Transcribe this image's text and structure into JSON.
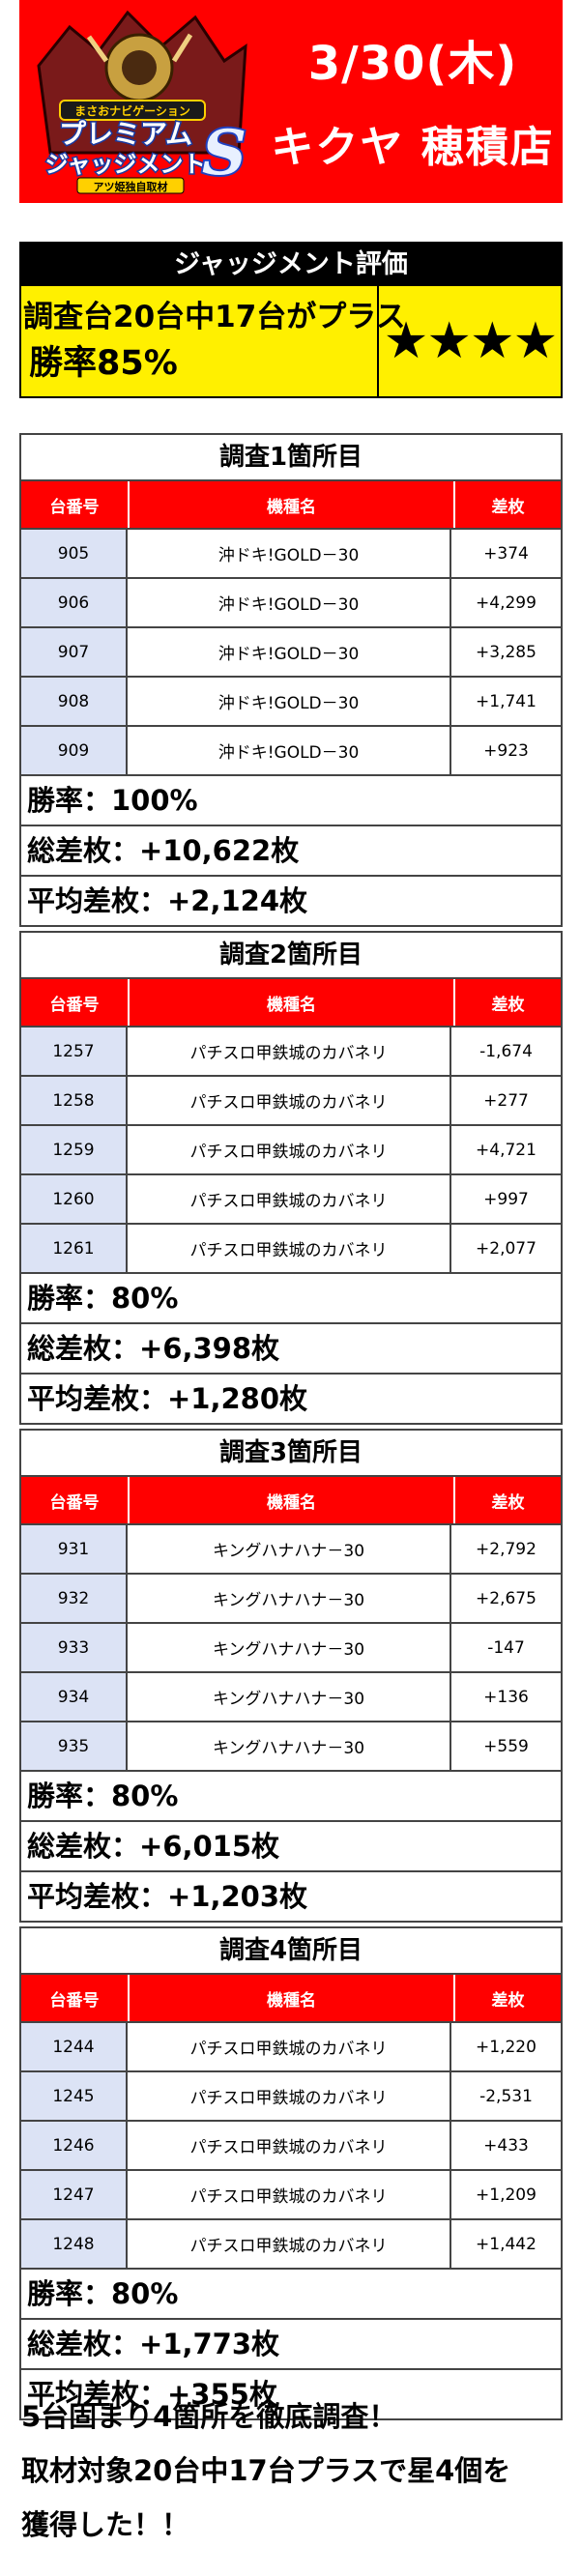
{
  "header": {
    "date": "3/30(木)",
    "store": "キクヤ 穂積店",
    "logo_top_text": "まさおナビゲーション",
    "logo_main_line1": "プレミアム",
    "logo_main_line2": "ジャッジメント",
    "logo_letter": "S",
    "logo_sub_text": "アツ姫独自取材",
    "bg_color": "#ff0000"
  },
  "judgement": {
    "title": "ジャッジメント評価",
    "line1": "調査台20台中17台がプラス",
    "line2": "勝率85%",
    "stars": "★★★★",
    "star_count": 4,
    "bg_color": "#fff000"
  },
  "table_headers": {
    "no": "台番号",
    "model": "機種名",
    "diff": "差枚"
  },
  "surveys": [
    {
      "title": "調査1箇所目",
      "rows": [
        {
          "no": "905",
          "model": "沖ドキ!GOLD－30",
          "diff": "+374"
        },
        {
          "no": "906",
          "model": "沖ドキ!GOLD－30",
          "diff": "+4,299"
        },
        {
          "no": "907",
          "model": "沖ドキ!GOLD－30",
          "diff": "+3,285"
        },
        {
          "no": "908",
          "model": "沖ドキ!GOLD－30",
          "diff": "+1,741"
        },
        {
          "no": "909",
          "model": "沖ドキ!GOLD－30",
          "diff": "+923"
        }
      ],
      "win_rate": "勝率：100%",
      "total": "総差枚：+10,622枚",
      "avg": "平均差枚：+2,124枚"
    },
    {
      "title": "調査2箇所目",
      "rows": [
        {
          "no": "1257",
          "model": "パチスロ甲鉄城のカバネリ",
          "diff": "-1,674"
        },
        {
          "no": "1258",
          "model": "パチスロ甲鉄城のカバネリ",
          "diff": "+277"
        },
        {
          "no": "1259",
          "model": "パチスロ甲鉄城のカバネリ",
          "diff": "+4,721"
        },
        {
          "no": "1260",
          "model": "パチスロ甲鉄城のカバネリ",
          "diff": "+997"
        },
        {
          "no": "1261",
          "model": "パチスロ甲鉄城のカバネリ",
          "diff": "+2,077"
        }
      ],
      "win_rate": "勝率：80%",
      "total": "総差枚：+6,398枚",
      "avg": "平均差枚：+1,280枚"
    },
    {
      "title": "調査3箇所目",
      "rows": [
        {
          "no": "931",
          "model": "キングハナハナ－30",
          "diff": "+2,792"
        },
        {
          "no": "932",
          "model": "キングハナハナ－30",
          "diff": "+2,675"
        },
        {
          "no": "933",
          "model": "キングハナハナ－30",
          "diff": "-147"
        },
        {
          "no": "934",
          "model": "キングハナハナ－30",
          "diff": "+136"
        },
        {
          "no": "935",
          "model": "キングハナハナ－30",
          "diff": "+559"
        }
      ],
      "win_rate": "勝率：80%",
      "total": "総差枚：+6,015枚",
      "avg": "平均差枚：+1,203枚"
    },
    {
      "title": "調査4箇所目",
      "rows": [
        {
          "no": "1244",
          "model": "パチスロ甲鉄城のカバネリ",
          "diff": "+1,220"
        },
        {
          "no": "1245",
          "model": "パチスロ甲鉄城のカバネリ",
          "diff": "-2,531"
        },
        {
          "no": "1246",
          "model": "パチスロ甲鉄城のカバネリ",
          "diff": "+433"
        },
        {
          "no": "1247",
          "model": "パチスロ甲鉄城のカバネリ",
          "diff": "+1,209"
        },
        {
          "no": "1248",
          "model": "パチスロ甲鉄城のカバネリ",
          "diff": "+1,442"
        }
      ],
      "win_rate": "勝率：80%",
      "total": "総差枚：+1,773枚",
      "avg": "平均差枚：+355枚"
    }
  ],
  "footer": {
    "line1": "5台固まり4箇所を徹底調査！",
    "line2": "取材対象20台中17台プラスで星4個を",
    "line3": "獲得した！！"
  }
}
